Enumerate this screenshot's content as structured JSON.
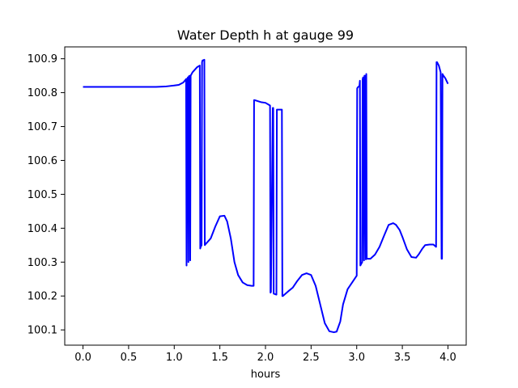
{
  "chart_data": {
    "type": "line",
    "title": "Water Depth h at gauge 99",
    "xlabel": "hours",
    "ylabel": "",
    "xlim": [
      -0.2,
      4.2
    ],
    "ylim": [
      100.055,
      100.935
    ],
    "x_ticks": [
      0.0,
      0.5,
      1.0,
      1.5,
      2.0,
      2.5,
      3.0,
      3.5,
      4.0
    ],
    "x_tick_labels": [
      "0.0",
      "0.5",
      "1.0",
      "1.5",
      "2.0",
      "2.5",
      "3.0",
      "3.5",
      "4.0"
    ],
    "y_ticks": [
      100.1,
      100.2,
      100.3,
      100.4,
      100.5,
      100.6,
      100.7,
      100.8,
      100.9
    ],
    "y_tick_labels": [
      "100.1",
      "100.2",
      "100.3",
      "100.4",
      "100.5",
      "100.6",
      "100.7",
      "100.8",
      "100.9"
    ],
    "grid": false,
    "series": [
      {
        "color": "#0000ff",
        "x": [
          0.0,
          0.2,
          0.4,
          0.6,
          0.8,
          0.9,
          1.0,
          1.05,
          1.1,
          1.13,
          1.135,
          1.14,
          1.15,
          1.155,
          1.16,
          1.17,
          1.175,
          1.18,
          1.19,
          1.2,
          1.25,
          1.28,
          1.285,
          1.29,
          1.3,
          1.305,
          1.31,
          1.33,
          1.335,
          1.34,
          1.35,
          1.4,
          1.45,
          1.5,
          1.55,
          1.58,
          1.62,
          1.66,
          1.7,
          1.75,
          1.8,
          1.85,
          1.87,
          1.875,
          1.88,
          1.95,
          2.0,
          2.05,
          2.055,
          2.06,
          2.08,
          2.085,
          2.09,
          2.1,
          2.12,
          2.125,
          2.13,
          2.15,
          2.18,
          2.185,
          2.19,
          2.25,
          2.3,
          2.35,
          2.4,
          2.45,
          2.5,
          2.55,
          2.6,
          2.65,
          2.7,
          2.75,
          2.78,
          2.82,
          2.85,
          2.9,
          2.95,
          3.0,
          3.005,
          3.01,
          3.03,
          3.035,
          3.04,
          3.06,
          3.065,
          3.07,
          3.08,
          3.085,
          3.09,
          3.1,
          3.105,
          3.11,
          3.15,
          3.2,
          3.25,
          3.3,
          3.35,
          3.4,
          3.43,
          3.47,
          3.5,
          3.55,
          3.6,
          3.65,
          3.68,
          3.72,
          3.75,
          3.8,
          3.84,
          3.87,
          3.875,
          3.88,
          3.9,
          3.92,
          3.93,
          3.935,
          3.94,
          3.95,
          3.97,
          4.0
        ],
        "values": [
          100.817,
          100.817,
          100.817,
          100.817,
          100.817,
          100.818,
          100.821,
          100.823,
          100.83,
          100.84,
          100.29,
          100.84,
          100.845,
          100.3,
          100.848,
          100.85,
          100.305,
          100.85,
          100.855,
          100.86,
          100.875,
          100.88,
          100.34,
          100.345,
          100.35,
          100.89,
          100.895,
          100.897,
          100.35,
          100.352,
          100.355,
          100.37,
          100.405,
          100.435,
          100.437,
          100.42,
          100.37,
          100.3,
          100.262,
          100.24,
          100.232,
          100.23,
          100.23,
          100.778,
          100.778,
          100.772,
          100.77,
          100.762,
          100.21,
          100.212,
          100.755,
          100.755,
          100.207,
          100.206,
          100.204,
          100.75,
          100.75,
          100.75,
          100.75,
          100.2,
          100.2,
          100.214,
          100.225,
          100.245,
          100.262,
          100.267,
          100.262,
          100.23,
          100.175,
          100.12,
          100.096,
          100.093,
          100.095,
          100.125,
          100.175,
          100.22,
          100.24,
          100.26,
          100.812,
          100.815,
          100.82,
          100.835,
          100.29,
          100.3,
          100.84,
          100.845,
          100.305,
          100.85,
          100.85,
          100.308,
          100.855,
          100.31,
          100.31,
          100.322,
          100.345,
          100.378,
          100.41,
          100.415,
          100.41,
          100.395,
          100.375,
          100.338,
          100.315,
          100.313,
          100.323,
          100.34,
          100.35,
          100.352,
          100.352,
          100.345,
          100.89,
          100.89,
          100.88,
          100.86,
          100.31,
          100.31,
          100.855,
          100.85,
          100.843,
          100.826
        ]
      }
    ]
  }
}
